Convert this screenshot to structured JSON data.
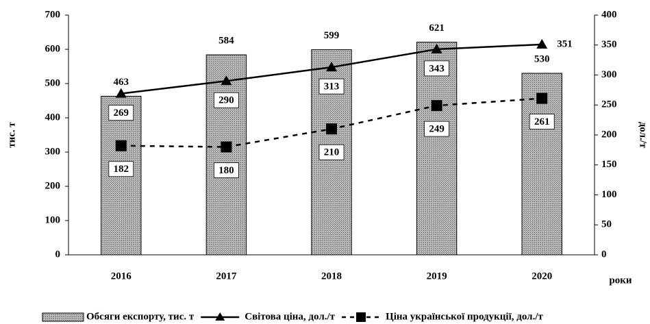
{
  "chart_data": {
    "type": "bar",
    "categories": [
      "2016",
      "2017",
      "2018",
      "2019",
      "2020"
    ],
    "series": [
      {
        "name": "Обсяги експорту, тис. т",
        "type": "bar",
        "color": "#8c8c8c",
        "values": [
          463,
          584,
          599,
          621,
          530
        ]
      },
      {
        "name": "Світова ціна, дол./т",
        "type": "line",
        "axis": "y2",
        "color": "#000000",
        "line_style": "solid",
        "marker": "triangle",
        "values": [
          269,
          290,
          313,
          343,
          351
        ]
      },
      {
        "name": "Ціна української продукції, дол./т",
        "type": "line",
        "axis": "y2",
        "color": "#000000",
        "line_style": "dashed",
        "marker": "square",
        "values": [
          182,
          180,
          210,
          249,
          261
        ]
      }
    ],
    "ylabel": "тис. т",
    "y2label": "дол./т",
    "xlabel": "роки",
    "ylim": [
      0,
      700
    ],
    "yticks": [
      0,
      100,
      200,
      300,
      400,
      500,
      600,
      700
    ],
    "y2lim": [
      0,
      400
    ],
    "y2ticks": [
      0,
      50,
      100,
      150,
      200,
      250,
      300,
      350,
      400
    ],
    "grid": false,
    "legend": "bottom"
  }
}
